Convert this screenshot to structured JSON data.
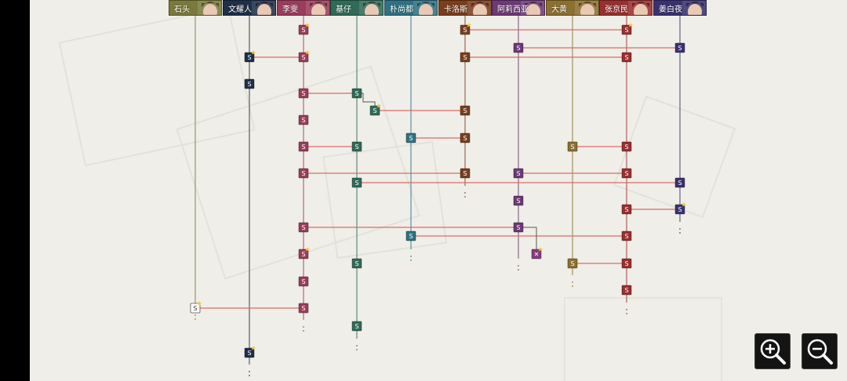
{
  "headers": [
    {
      "name": "石头",
      "color": "#7a7a3c"
    },
    {
      "name": "文耀人",
      "color": "#1f3049"
    },
    {
      "name": "李雯",
      "color": "#9c3c5c"
    },
    {
      "name": "基仔",
      "color": "#2f6b58"
    },
    {
      "name": "朴尚都",
      "color": "#2e7283"
    },
    {
      "name": "卡洛斯",
      "color": "#7a3e1c"
    },
    {
      "name": "阿莉西亚",
      "color": "#6e3977"
    },
    {
      "name": "大黄",
      "color": "#8c7030"
    },
    {
      "name": "张京民",
      "color": "#9b2f2f"
    },
    {
      "name": "姜白夜",
      "color": "#3a3270"
    }
  ],
  "node_letter": "S",
  "crossed_mark": "✕",
  "zoom": {
    "in_icon": "zoom-in-icon",
    "out_icon": "zoom-out-icon"
  },
  "colors": {
    "link": "#e06a63",
    "background": "#efeee8"
  }
}
